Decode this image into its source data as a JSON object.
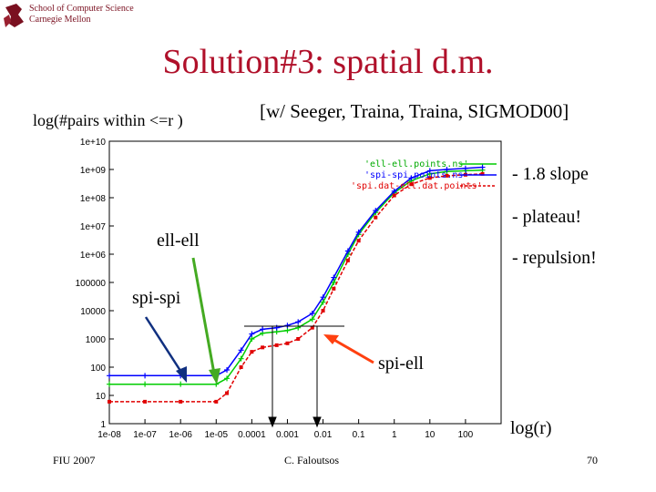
{
  "header": {
    "institution_line1": "School of Computer Science",
    "institution_line2": "Carnegie Mellon"
  },
  "slide": {
    "title": "Solution#3: spatial d.m.",
    "y_axis_text": "log(#pairs within <=r )",
    "citation": "[w/ Seeger, Traina, Traina, SIGMOD00]",
    "notes": [
      "- 1.8 slope",
      "- plateau!",
      "- repulsion!"
    ],
    "annotations": {
      "ell": "ell-ell",
      "spi": "spi-spi",
      "spiell": "spi-ell"
    },
    "x_axis_text": "log(r)"
  },
  "footer": {
    "left": "FIU 2007",
    "center": "C. Faloutsos",
    "right": "70"
  },
  "colors": {
    "title": "#b0102a",
    "ell": "#00cc00",
    "spi": "#0000ff",
    "spiell": "#e00000",
    "arrow_ell": "#44aa22",
    "arrow_blue": "#103080",
    "arrow_red": "#ff4010"
  },
  "chart_data": {
    "type": "line",
    "xscale": "log",
    "yscale": "log",
    "xlim": [
      1e-08,
      1000
    ],
    "ylim": [
      1,
      10000000000.0
    ],
    "x_ticks": [
      "1e-08",
      "1e-07",
      "1e-06",
      "1e-05",
      "0.0001",
      "0.001",
      "0.01",
      "0.1",
      "1",
      "10",
      "100"
    ],
    "y_ticks": [
      "1",
      "10",
      "100",
      "1000",
      "10000",
      "100000",
      "1e+06",
      "1e+07",
      "1e+08",
      "1e+09",
      "1e+10"
    ],
    "series": [
      {
        "name": "'ell-ell.points.ns'",
        "color": "#00cc00",
        "x": [
          1e-08,
          1e-07,
          1e-06,
          1e-05,
          2e-05,
          5e-05,
          0.0001,
          0.0002,
          0.0005,
          0.001,
          0.002,
          0.005,
          0.01,
          0.02,
          0.05,
          0.1,
          0.3,
          1,
          3,
          10,
          30,
          100,
          300
        ],
        "y": [
          25,
          25,
          25,
          25,
          40,
          200,
          1000,
          1600,
          1800,
          2000,
          2500,
          5000,
          20000,
          100000.0,
          1000000.0,
          5000000.0,
          30000000.0,
          150000000.0,
          400000000.0,
          700000000.0,
          850000000.0,
          900000000.0,
          950000000.0
        ]
      },
      {
        "name": "'spi-spi.points.ns'",
        "color": "#0000ff",
        "x": [
          1e-08,
          1e-07,
          1e-06,
          1e-05,
          2e-05,
          5e-05,
          0.0001,
          0.0002,
          0.0005,
          0.001,
          0.002,
          0.005,
          0.01,
          0.02,
          0.05,
          0.1,
          0.3,
          1,
          3,
          10,
          30,
          100,
          300
        ],
        "y": [
          50,
          50,
          50,
          50,
          80,
          400,
          1500,
          2200,
          2500,
          3000,
          4000,
          8000,
          30000,
          150000.0,
          1300000.0,
          6000000.0,
          35000000.0,
          170000000.0,
          500000000.0,
          900000000.0,
          1000000000.0,
          1100000000.0,
          1200000000.0
        ]
      },
      {
        "name": "'spi.dat-ell.dat.points'",
        "color": "#e00000",
        "x": [
          1e-08,
          1e-07,
          1e-06,
          1e-05,
          2e-05,
          5e-05,
          0.0001,
          0.0002,
          0.0005,
          0.001,
          0.002,
          0.005,
          0.01,
          0.02,
          0.05,
          0.1,
          0.3,
          1,
          3,
          10,
          30,
          100,
          300
        ],
        "y": [
          6,
          6,
          6,
          6,
          12,
          100,
          350,
          500,
          600,
          700,
          1000,
          2500,
          10000,
          60000,
          600000.0,
          3000000.0,
          20000000.0,
          120000000.0,
          300000000.0,
          500000000.0,
          600000000.0,
          650000000.0,
          700000000.0
        ]
      }
    ]
  }
}
